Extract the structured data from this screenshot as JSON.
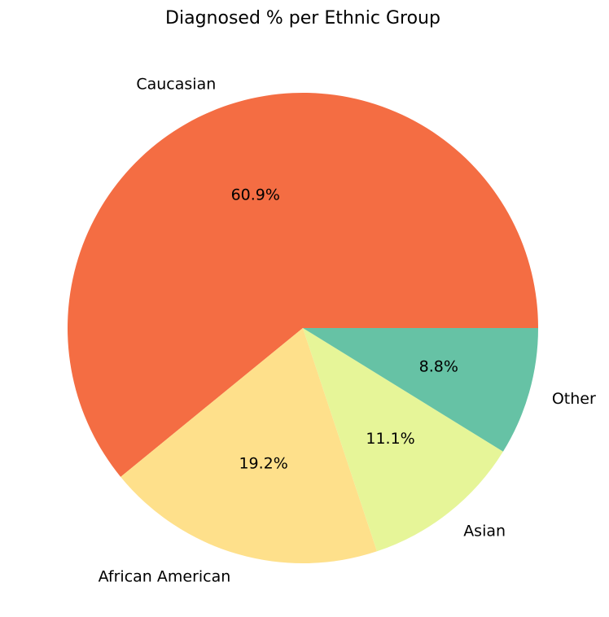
{
  "chart_data": {
    "type": "pie",
    "title": "Diagnosed % per Ethnic Group",
    "categories": [
      "Caucasian",
      "African American",
      "Asian",
      "Other"
    ],
    "values": [
      60.9,
      19.2,
      11.1,
      8.8
    ],
    "value_labels": [
      "60.9%",
      "19.2%",
      "11.1%",
      "8.8%"
    ],
    "colors": [
      "#F46D43",
      "#FEE08B",
      "#E6F598",
      "#66C2A5"
    ],
    "start_angle_deg": 0,
    "direction": "counterclockwise",
    "legend": "none"
  }
}
